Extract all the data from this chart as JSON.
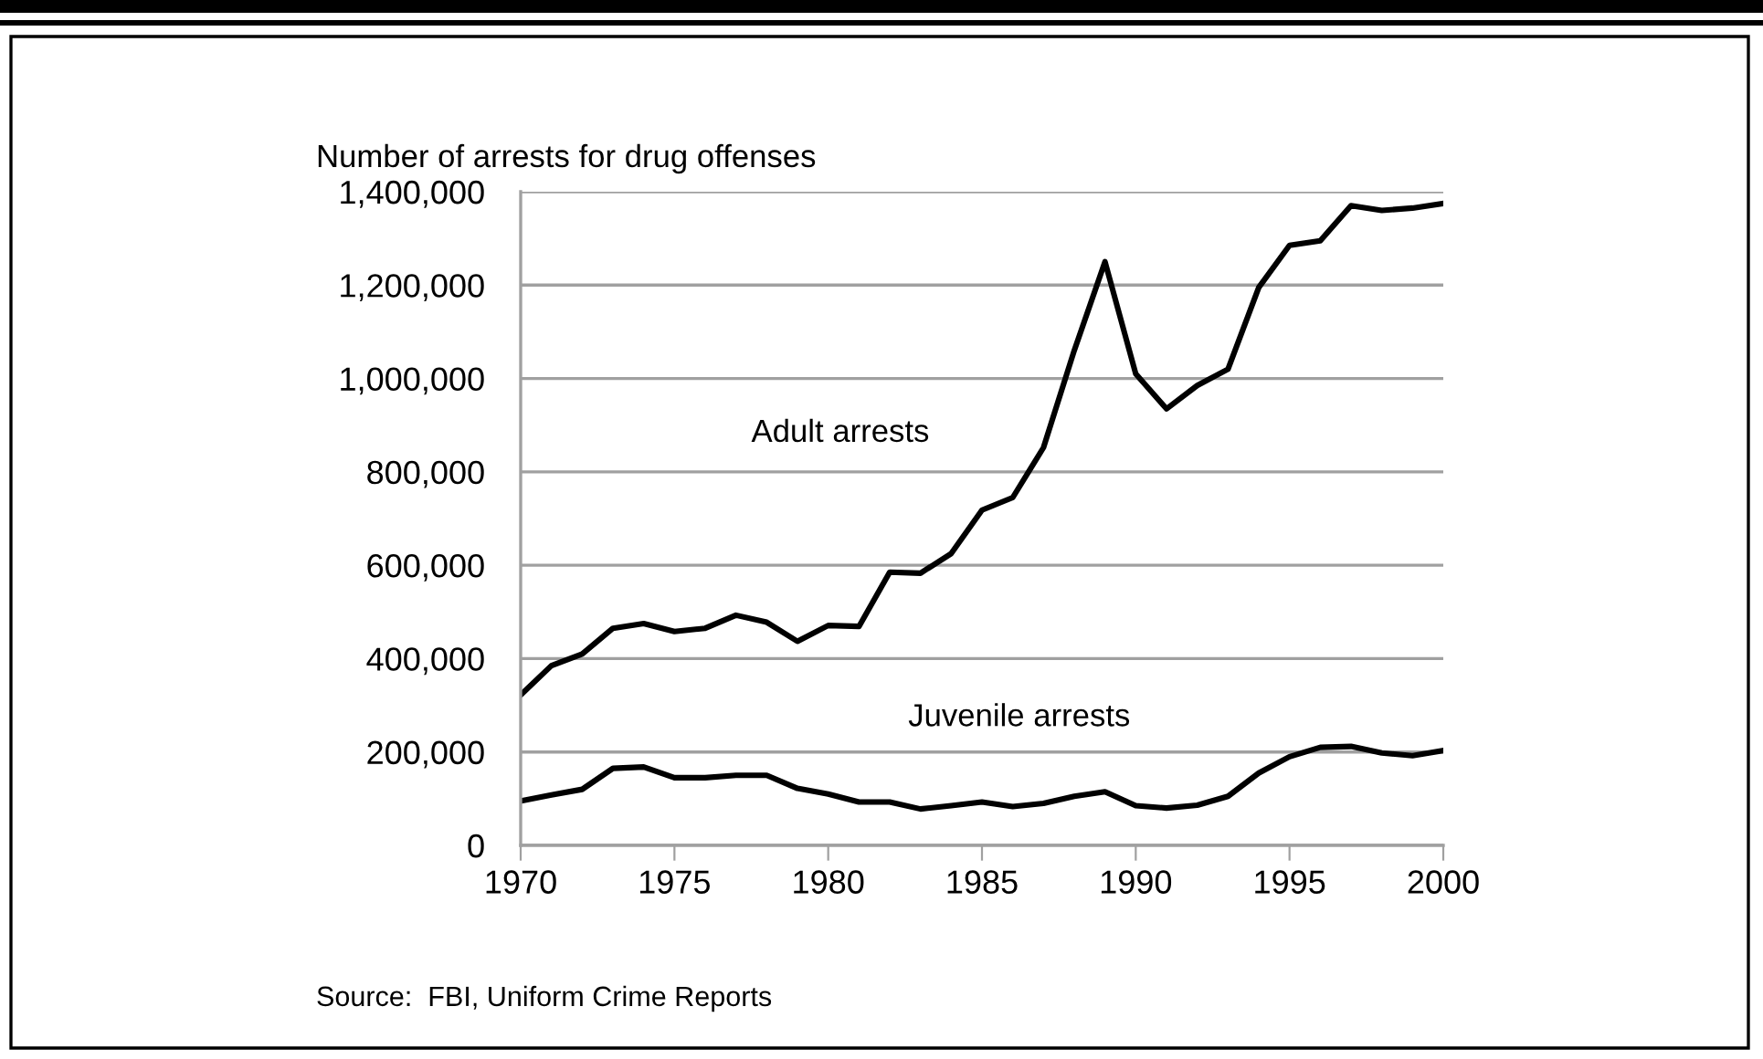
{
  "chart_data": {
    "type": "line",
    "title": "Number of arrests for drug offenses",
    "x": [
      1970,
      1971,
      1972,
      1973,
      1974,
      1975,
      1976,
      1977,
      1978,
      1979,
      1980,
      1981,
      1982,
      1983,
      1984,
      1985,
      1986,
      1987,
      1988,
      1989,
      1990,
      1991,
      1992,
      1993,
      1994,
      1995,
      1996,
      1997,
      1998,
      1999,
      2000
    ],
    "series": [
      {
        "name": "Adult arrests",
        "color": "#000000",
        "values": [
          322000,
          385000,
          410000,
          465000,
          475000,
          458000,
          465000,
          493000,
          478000,
          437000,
          471000,
          469000,
          585000,
          583000,
          625000,
          718000,
          745000,
          852000,
          1060000,
          1250000,
          1010000,
          935000,
          985000,
          1020000,
          1195000,
          1285000,
          1295000,
          1370000,
          1360000,
          1365000,
          1375000
        ]
      },
      {
        "name": "Juvenile arrests",
        "color": "#000000",
        "values": [
          95000,
          108000,
          120000,
          165000,
          168000,
          145000,
          145000,
          150000,
          150000,
          122000,
          110000,
          93000,
          93000,
          78000,
          85000,
          93000,
          83000,
          90000,
          105000,
          115000,
          85000,
          80000,
          86000,
          105000,
          155000,
          190000,
          210000,
          212000,
          198000,
          192000,
          203000
        ]
      }
    ],
    "xlim": [
      1970,
      2000
    ],
    "xticks": [
      1970,
      1975,
      1980,
      1985,
      1990,
      1995,
      2000
    ],
    "ylim": [
      0,
      1400000
    ],
    "yticks": [
      {
        "value": 0,
        "label": "0"
      },
      {
        "value": 200000,
        "label": "200,000"
      },
      {
        "value": 400000,
        "label": "400,000"
      },
      {
        "value": 600000,
        "label": "600,000"
      },
      {
        "value": 800000,
        "label": "800,000"
      },
      {
        "value": 1000000,
        "label": "1,000,000"
      },
      {
        "value": 1200000,
        "label": "1,200,000"
      },
      {
        "value": 1400000,
        "label": "1,400,000"
      }
    ],
    "grid": "y",
    "legend": false,
    "marker": "none",
    "line_style": "solid",
    "annotations": [
      "Source:  FBI, Uniform Crime Reports"
    ]
  }
}
